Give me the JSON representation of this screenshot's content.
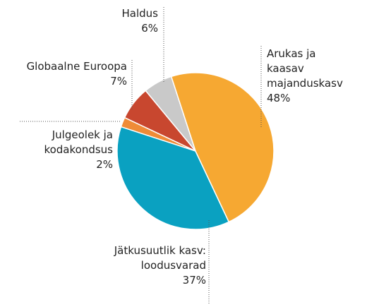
{
  "chart_data": {
    "type": "pie",
    "categories": [
      "Arukas ja\nkaasav\nmajanduskasv",
      "Jätkusuutlik kasv:\nloodusvarad",
      "Julgeolek ja\nkodakondsus",
      "Globaalne Euroopa",
      "Haldus"
    ],
    "values": [
      48,
      37,
      2,
      7,
      6
    ],
    "value_labels": [
      "48%",
      "37%",
      "2%",
      "7%",
      "6%"
    ],
    "colors": [
      "#f6a832",
      "#0aa1c1",
      "#ef8b37",
      "#c8472f",
      "#c9c9c9"
    ]
  }
}
